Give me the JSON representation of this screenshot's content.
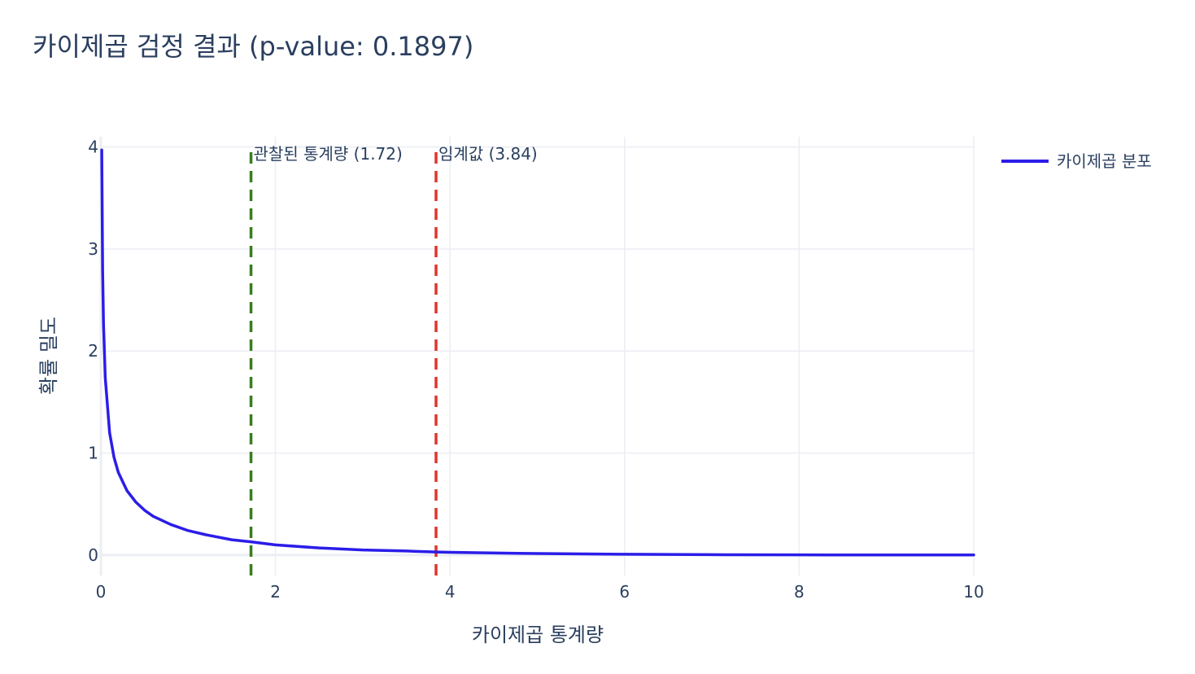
{
  "chart_data": {
    "type": "line",
    "title": "카이제곱 검정 결과 (p-value: 0.1897)",
    "xlabel": "카이제곱 통계량",
    "ylabel": "확률 밀도",
    "xlim": [
      0,
      10
    ],
    "ylim": [
      -0.2,
      4.1
    ],
    "xticks": [
      0,
      2,
      4,
      6,
      8,
      10
    ],
    "yticks": [
      0,
      1,
      2,
      3,
      4
    ],
    "grid": true,
    "legend_position": "top-right",
    "series": [
      {
        "name": "카이제곱 분포",
        "color": "#2b1de8",
        "x": [
          0.01,
          0.02,
          0.03,
          0.05,
          0.1,
          0.15,
          0.2,
          0.3,
          0.4,
          0.5,
          0.6,
          0.8,
          1.0,
          1.2,
          1.5,
          1.72,
          2.0,
          2.5,
          3.0,
          3.5,
          3.84,
          4.0,
          5.0,
          6.0,
          7.0,
          8.0,
          9.0,
          10.0
        ],
        "y": [
          3.97,
          2.79,
          2.27,
          1.74,
          1.2,
          0.96,
          0.81,
          0.63,
          0.52,
          0.44,
          0.38,
          0.3,
          0.24,
          0.2,
          0.15,
          0.13,
          0.1,
          0.07,
          0.05,
          0.04,
          0.03,
          0.027,
          0.015,
          0.008,
          0.004,
          0.002,
          0.001,
          0.001
        ]
      }
    ],
    "vlines": [
      {
        "x": 1.72,
        "color": "#3a7d1e",
        "dash": "dashed",
        "label": "관찰된 통계량 (1.72)"
      },
      {
        "x": 3.84,
        "color": "#e0352b",
        "dash": "dashed",
        "label": "임계값 (3.84)"
      }
    ]
  }
}
